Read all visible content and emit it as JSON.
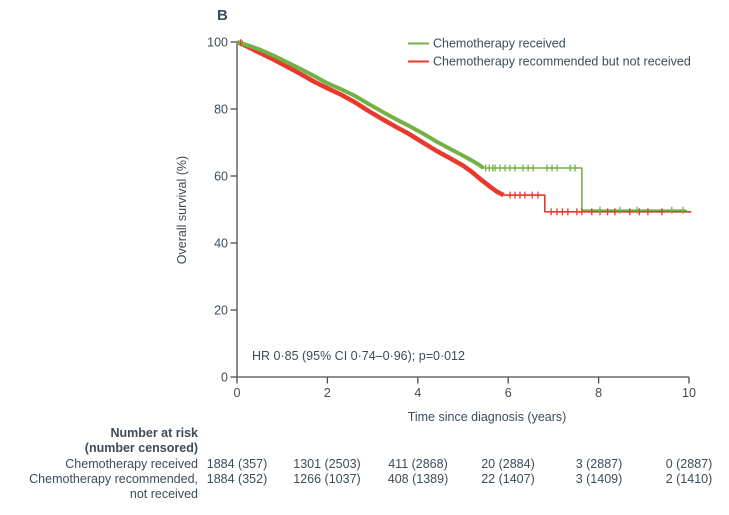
{
  "chart_data": {
    "type": "line",
    "subtype": "kaplan-meier-step",
    "title": "B",
    "xlabel": "Time since diagnosis (years)",
    "ylabel": "Overall survival (%)",
    "xlim": [
      0,
      10
    ],
    "ylim": [
      0,
      100
    ],
    "x_ticks": [
      0,
      2,
      4,
      6,
      8,
      10
    ],
    "y_ticks": [
      0,
      20,
      40,
      60,
      80,
      100
    ],
    "x_tick_labels": [
      "0",
      "2",
      "4",
      "6",
      "8",
      "10"
    ],
    "y_tick_labels": [
      "0",
      "20",
      "40",
      "60",
      "80",
      "100"
    ],
    "grid": false,
    "legend_position": "top-right",
    "annotation": "HR 0·85 (95% CI 0·74–0·96); p=0·012",
    "series": [
      {
        "name": "Chemotherapy received",
        "color": "#74b144",
        "dense_points": [
          [
            0,
            100
          ],
          [
            0.2,
            99.2
          ],
          [
            0.5,
            97.8
          ],
          [
            0.8,
            96.0
          ],
          [
            1.1,
            94.0
          ],
          [
            1.4,
            92.0
          ],
          [
            1.7,
            89.9
          ],
          [
            2.0,
            87.7
          ],
          [
            2.3,
            85.9
          ],
          [
            2.6,
            84.0
          ],
          [
            2.9,
            81.6
          ],
          [
            3.2,
            79.3
          ],
          [
            3.5,
            77.1
          ],
          [
            3.8,
            75.0
          ],
          [
            4.1,
            72.8
          ],
          [
            4.4,
            70.4
          ],
          [
            4.7,
            68.2
          ],
          [
            5.0,
            66.1
          ],
          [
            5.2,
            64.6
          ],
          [
            5.35,
            63.4
          ],
          [
            5.45,
            62.4
          ]
        ],
        "tail_points": [
          [
            5.45,
            62.4
          ],
          [
            7.63,
            62.4
          ],
          [
            7.63,
            49.8
          ],
          [
            9.95,
            49.8
          ]
        ],
        "censor_marks": [
          [
            0.12,
            99.6
          ],
          [
            5.5,
            62.4
          ],
          [
            5.58,
            62.4
          ],
          [
            5.66,
            62.4
          ],
          [
            5.71,
            62.4
          ],
          [
            5.82,
            62.4
          ],
          [
            5.93,
            62.4
          ],
          [
            6.04,
            62.4
          ],
          [
            6.15,
            62.4
          ],
          [
            6.33,
            62.4
          ],
          [
            6.44,
            62.4
          ],
          [
            6.55,
            62.4
          ],
          [
            6.86,
            62.4
          ],
          [
            6.97,
            62.4
          ],
          [
            7.08,
            62.4
          ],
          [
            7.37,
            62.4
          ],
          [
            7.48,
            62.4
          ],
          [
            8.03,
            49.8
          ],
          [
            8.47,
            49.8
          ],
          [
            8.85,
            49.8
          ],
          [
            9.62,
            49.8
          ],
          [
            9.87,
            49.8
          ]
        ]
      },
      {
        "name": "Chemotherapy recommended but not received",
        "color": "#e8392c",
        "dense_points": [
          [
            0,
            100
          ],
          [
            0.2,
            98.8
          ],
          [
            0.5,
            96.8
          ],
          [
            0.8,
            94.8
          ],
          [
            1.1,
            92.7
          ],
          [
            1.4,
            90.5
          ],
          [
            1.7,
            88.2
          ],
          [
            2.0,
            86.2
          ],
          [
            2.3,
            84.3
          ],
          [
            2.6,
            82.1
          ],
          [
            2.9,
            79.5
          ],
          [
            3.2,
            77.1
          ],
          [
            3.5,
            74.8
          ],
          [
            3.8,
            72.6
          ],
          [
            4.1,
            70.1
          ],
          [
            4.4,
            67.6
          ],
          [
            4.7,
            65.4
          ],
          [
            5.0,
            63.1
          ],
          [
            5.2,
            61.2
          ],
          [
            5.4,
            58.9
          ],
          [
            5.6,
            56.8
          ],
          [
            5.75,
            55.3
          ],
          [
            5.9,
            54.3
          ]
        ],
        "tail_points": [
          [
            5.9,
            54.3
          ],
          [
            6.81,
            54.3
          ],
          [
            6.81,
            49.3
          ],
          [
            10.05,
            49.3
          ]
        ],
        "censor_marks": [
          [
            0.08,
            99.8
          ],
          [
            6.04,
            54.3
          ],
          [
            6.15,
            54.3
          ],
          [
            6.26,
            54.3
          ],
          [
            6.37,
            54.3
          ],
          [
            6.53,
            54.3
          ],
          [
            6.66,
            54.3
          ],
          [
            6.95,
            49.3
          ],
          [
            7.08,
            49.3
          ],
          [
            7.2,
            49.3
          ],
          [
            7.32,
            49.3
          ],
          [
            7.52,
            49.3
          ],
          [
            7.63,
            49.3
          ],
          [
            7.85,
            49.3
          ],
          [
            8.03,
            49.3
          ],
          [
            8.2,
            49.3
          ],
          [
            8.36,
            49.3
          ],
          [
            8.69,
            49.3
          ],
          [
            8.9,
            49.3
          ],
          [
            9.09,
            49.3
          ],
          [
            9.4,
            49.3
          ]
        ]
      }
    ]
  },
  "risk_table": {
    "header_line1": "Number at risk",
    "header_line2": "(number censored)",
    "time_points": [
      0,
      2,
      4,
      6,
      8,
      10
    ],
    "rows": [
      {
        "label_line1": "Chemotherapy received",
        "label_line2": "",
        "values": [
          "1884 (357)",
          "1301 (2503)",
          "411 (2868)",
          "20 (2884)",
          "3 (2887)",
          "0 (2887)"
        ]
      },
      {
        "label_line1": "Chemotherapy recommended,",
        "label_line2": "not received",
        "values": [
          "1884 (352)",
          "1266 (1037)",
          "408 (1389)",
          "22 (1407)",
          "3 (1409)",
          "2 (1410)"
        ]
      }
    ]
  }
}
